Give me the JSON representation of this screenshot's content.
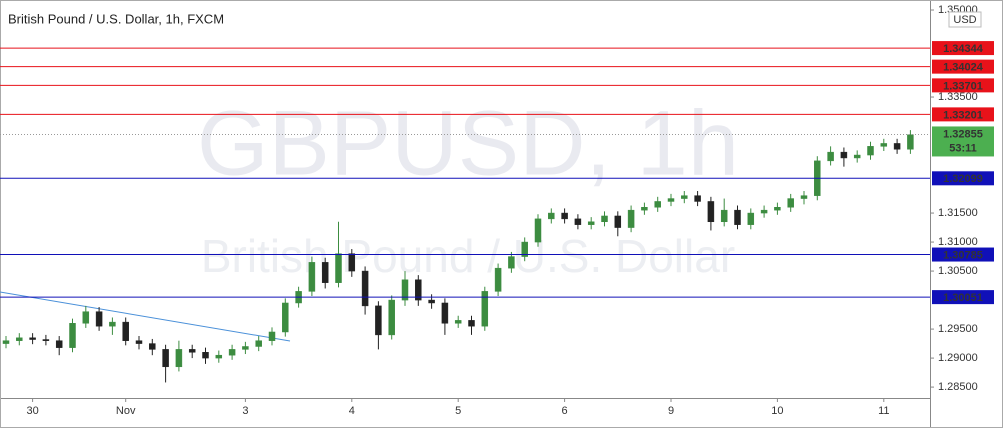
{
  "chart_data": {
    "type": "candlestick",
    "title": "British Pound / U.S. Dollar, 1h, FXCM",
    "watermark_symbol": "GBPUSD, 1h",
    "watermark_name": "British Pound / U.S. Dollar",
    "currency": "USD",
    "categories": [
      null,
      null,
      "30",
      null,
      null,
      null,
      null,
      null,
      null,
      "Nov",
      null,
      null,
      null,
      null,
      null,
      null,
      null,
      null,
      "3",
      null,
      null,
      null,
      null,
      null,
      null,
      null,
      "4",
      null,
      null,
      null,
      null,
      null,
      null,
      null,
      "5",
      null,
      null,
      null,
      null,
      null,
      null,
      null,
      "6",
      null,
      null,
      null,
      null,
      null,
      null,
      null,
      "9",
      null,
      null,
      null,
      null,
      null,
      null,
      null,
      "10",
      null,
      null,
      null,
      null,
      null,
      null,
      null,
      "11",
      null,
      null
    ],
    "open": [
      1.2925,
      1.293,
      1.2935,
      1.2932,
      1.293,
      1.2918,
      1.296,
      1.298,
      1.2955,
      1.2962,
      1.293,
      1.2925,
      1.2915,
      1.2885,
      1.2915,
      1.291,
      1.29,
      1.2905,
      1.2915,
      1.292,
      1.293,
      1.2945,
      1.2995,
      1.3015,
      1.3065,
      1.303,
      1.308,
      1.305,
      1.299,
      1.294,
      1.3,
      1.3035,
      1.3,
      1.2995,
      1.296,
      1.2965,
      1.2955,
      1.3015,
      1.3055,
      1.3075,
      1.31,
      1.314,
      1.315,
      1.314,
      1.313,
      1.3135,
      1.3145,
      1.3125,
      1.3155,
      1.316,
      1.317,
      1.3175,
      1.318,
      1.317,
      1.3135,
      1.3155,
      1.313,
      1.315,
      1.3155,
      1.316,
      1.3175,
      1.318,
      1.324,
      1.3255,
      1.3245,
      1.325,
      1.3265,
      1.327,
      1.326
    ],
    "high": [
      1.2938,
      1.2943,
      1.2943,
      1.294,
      1.2938,
      1.2968,
      1.299,
      1.2988,
      1.297,
      1.297,
      1.2938,
      1.2933,
      1.2923,
      1.293,
      1.2923,
      1.2918,
      1.2913,
      1.2923,
      1.2928,
      1.2938,
      1.2953,
      1.3003,
      1.3023,
      1.3075,
      1.3073,
      1.3135,
      1.3088,
      1.3058,
      1.2998,
      1.3008,
      1.305,
      1.3043,
      1.301,
      1.3003,
      1.2973,
      1.2973,
      1.3023,
      1.3063,
      1.3083,
      1.3108,
      1.3148,
      1.3158,
      1.3158,
      1.3148,
      1.3143,
      1.3153,
      1.3153,
      1.3163,
      1.3168,
      1.3178,
      1.3183,
      1.3188,
      1.3188,
      1.3178,
      1.3175,
      1.3163,
      1.3158,
      1.3163,
      1.3168,
      1.3183,
      1.3188,
      1.3248,
      1.3265,
      1.3263,
      1.3258,
      1.3273,
      1.3278,
      1.3278,
      1.3293
    ],
    "low": [
      1.2917,
      1.2922,
      1.2924,
      1.2922,
      1.2905,
      1.291,
      1.2952,
      1.2947,
      1.294,
      1.2922,
      1.2915,
      1.2905,
      1.2858,
      1.2877,
      1.29,
      1.289,
      1.2892,
      1.2897,
      1.2907,
      1.2912,
      1.2922,
      1.2937,
      1.2987,
      1.3007,
      1.302,
      1.3022,
      1.304,
      1.2975,
      1.2915,
      1.2932,
      1.299,
      1.299,
      1.2985,
      1.294,
      1.2952,
      1.294,
      1.2947,
      1.3007,
      1.3047,
      1.3067,
      1.3092,
      1.3132,
      1.3132,
      1.3122,
      1.3122,
      1.3127,
      1.311,
      1.3117,
      1.3147,
      1.3152,
      1.3162,
      1.3167,
      1.3162,
      1.312,
      1.3127,
      1.3122,
      1.3122,
      1.3142,
      1.3147,
      1.3152,
      1.3165,
      1.3172,
      1.3232,
      1.323,
      1.3237,
      1.3242,
      1.3257,
      1.3252,
      1.3252
    ],
    "close": [
      1.293,
      1.2935,
      1.2932,
      1.293,
      1.2918,
      1.296,
      1.298,
      1.2955,
      1.2962,
      1.293,
      1.2925,
      1.2915,
      1.2885,
      1.2915,
      1.291,
      1.29,
      1.2905,
      1.2915,
      1.292,
      1.293,
      1.2945,
      1.2995,
      1.3015,
      1.3065,
      1.303,
      1.308,
      1.305,
      1.299,
      1.294,
      1.3,
      1.3035,
      1.3,
      1.2995,
      1.296,
      1.2965,
      1.2955,
      1.3015,
      1.3055,
      1.3075,
      1.31,
      1.314,
      1.315,
      1.314,
      1.313,
      1.3135,
      1.3145,
      1.3125,
      1.3155,
      1.316,
      1.317,
      1.3175,
      1.318,
      1.317,
      1.3135,
      1.3155,
      1.313,
      1.315,
      1.3155,
      1.316,
      1.3175,
      1.318,
      1.324,
      1.3255,
      1.3245,
      1.325,
      1.3265,
      1.327,
      1.326,
      1.3285
    ],
    "up_color": "#3c8c40",
    "down_color": "#222222",
    "ylim": [
      1.28312,
      1.35121
    ],
    "yticks": [
      {
        "value": 1.285,
        "label": "1.28500"
      },
      {
        "value": 1.29,
        "label": "1.29000"
      },
      {
        "value": 1.295,
        "label": "1.29500"
      },
      {
        "value": 1.305,
        "label": "1.30500"
      },
      {
        "value": 1.31,
        "label": "1.31000"
      },
      {
        "value": 1.315,
        "label": "1.31500"
      },
      {
        "value": 1.335,
        "label": "1.33500"
      },
      {
        "value": 1.35,
        "label": "1.35000"
      }
    ],
    "resistance": [
      1.34344,
      1.34024,
      1.33701,
      1.33201
    ],
    "resistance_color": "#e8121a",
    "support": [
      1.32099,
      1.30785,
      1.30051
    ],
    "support_color": "#1010b8",
    "last_price": 1.32855,
    "last_price_color": "#4caf50",
    "countdown": "53:11",
    "grid": false
  }
}
